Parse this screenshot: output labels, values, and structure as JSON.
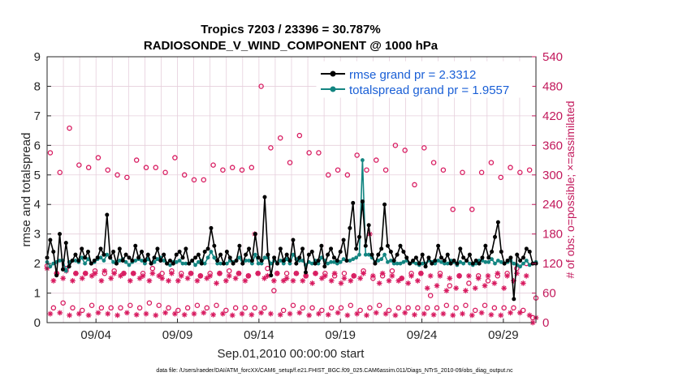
{
  "chart_data": {
    "type": "line",
    "title": "Tropics 7203 / 23396 = 30.787%",
    "subtitle": "RADIOSONDE_V_WIND_COMPONENT @ 1000 hPa",
    "xlabel": "Sep.01,2010 00:00:00 start",
    "ylabel": "rmse and totalspread",
    "ylabel_right": "# of obs: o=possible; ×=assimilated",
    "footer": "data file: /Users/raeder/DAI/ATM_forcXX/CAM6_setup/f.e21.FHIST_BGC.f09_025.CAM6assim.011/Diags_NTrS_2010-09/obs_diag_output.nc",
    "xlim": [
      1,
      31
    ],
    "ylim": [
      0,
      9
    ],
    "ylim_right": [
      0,
      540
    ],
    "grid": true,
    "legend_position": "top-right",
    "x_tick_values": [
      4,
      9,
      14,
      19,
      24,
      29
    ],
    "x_tick_labels": [
      "09/04",
      "09/09",
      "09/14",
      "09/19",
      "09/24",
      "09/29"
    ],
    "y_ticks": [
      "0",
      "1",
      "2",
      "3",
      "4",
      "5",
      "6",
      "7",
      "8",
      "9"
    ],
    "y_ticks_right": [
      "0",
      "60",
      "120",
      "180",
      "240",
      "300",
      "360",
      "420",
      "480",
      "540"
    ],
    "colors": {
      "rmse": "#000000",
      "spread": "#138581",
      "obs": "#d81b60",
      "legend_text": "#1a5fd6",
      "grid": "#e6cfdc"
    },
    "series": [
      {
        "name": "rmse grand pr = 2.3312",
        "key": "rmse",
        "values": [
          2.2,
          2.8,
          2.4,
          1.6,
          3.0,
          1.8,
          2.7,
          1.9,
          2.1,
          2.3,
          2.1,
          2.5,
          2.2,
          2.4,
          2.0,
          2.1,
          2.2,
          2.5,
          2.3,
          3.65,
          2.2,
          2.4,
          2.0,
          2.5,
          2.1,
          2.3,
          2.2,
          2.1,
          2.6,
          2.2,
          2.4,
          2.1,
          2.3,
          2.0,
          2.2,
          2.5,
          2.1,
          2.3,
          2.0,
          2.1,
          2.0,
          2.3,
          2.4,
          2.2,
          2.5,
          2.0,
          2.1,
          2.2,
          2.3,
          2.0,
          2.4,
          2.5,
          3.2,
          2.6,
          2.1,
          2.3,
          2.0,
          2.4,
          2.2,
          2.0,
          2.1,
          2.6,
          2.0,
          2.3,
          2.5,
          2.1,
          3.0,
          2.2,
          2.1,
          4.25,
          2.3,
          1.6,
          2.2,
          2.0,
          2.5,
          2.1,
          2.3,
          2.1,
          2.8,
          2.0,
          2.2,
          2.5,
          1.7,
          2.3,
          2.4,
          2.0,
          2.1,
          2.6,
          1.9,
          2.3,
          2.5,
          2.2,
          2.1,
          2.4,
          2.8,
          2.1,
          3.2,
          4.05,
          2.5,
          2.9,
          4.1,
          2.6,
          3.3,
          2.3,
          2.0,
          2.3,
          2.5,
          4.0,
          2.6,
          2.4,
          2.1,
          2.3,
          2.6,
          2.4,
          2.2,
          2.0,
          2.1,
          2.2,
          2.0,
          2.3,
          1.9,
          2.2,
          2.0,
          2.1,
          2.6,
          2.2,
          2.1,
          2.3,
          2.0,
          2.1,
          2.0,
          2.5,
          2.2,
          2.1,
          2.3,
          2.0,
          2.1,
          2.0,
          2.2,
          2.6,
          2.2,
          2.4,
          2.9,
          3.4,
          2.4,
          2.0,
          2.1,
          2.2,
          0.8,
          2.3,
          2.1,
          2.2,
          2.5,
          2.4,
          2.0,
          2.0
        ]
      },
      {
        "name": "totalspread grand pr = 1.9557",
        "key": "spread",
        "values": [
          2.05,
          1.9,
          2.0,
          2.05,
          2.1,
          2.1,
          1.75,
          2.05,
          2.1,
          2.1,
          2.05,
          2.2,
          2.0,
          2.15,
          2.0,
          2.05,
          2.15,
          2.2,
          2.1,
          2.3,
          2.2,
          2.05,
          2.0,
          2.1,
          2.15,
          2.05,
          1.95,
          2.05,
          2.1,
          2.15,
          2.1,
          2.0,
          2.15,
          2.0,
          2.05,
          2.15,
          2.2,
          2.1,
          2.0,
          1.95,
          2.05,
          2.05,
          2.1,
          2.0,
          2.0,
          2.0,
          2.1,
          1.95,
          2.05,
          2.1,
          2.0,
          2.2,
          2.4,
          2.2,
          2.0,
          2.0,
          2.0,
          2.0,
          2.1,
          2.05,
          2.1,
          2.2,
          2.0,
          2.1,
          2.1,
          2.0,
          2.3,
          2.0,
          2.0,
          2.2,
          2.2,
          2.0,
          2.1,
          2.0,
          2.1,
          2.0,
          2.15,
          2.0,
          2.3,
          2.15,
          2.1,
          2.1,
          1.95,
          2.05,
          2.0,
          2.1,
          2.0,
          2.2,
          2.1,
          2.0,
          2.05,
          2.05,
          2.0,
          2.05,
          2.15,
          2.1,
          2.1,
          2.15,
          2.2,
          2.3,
          5.5,
          2.3,
          2.3,
          2.2,
          2.05,
          2.1,
          2.15,
          2.3,
          2.05,
          2.1,
          2.0,
          2.0,
          2.0,
          2.05,
          2.1,
          2.0,
          2.05,
          2.0,
          1.95,
          2.0,
          2.0,
          2.1,
          2.05,
          2.0,
          2.1,
          2.05,
          2.0,
          2.0,
          2.1,
          2.05,
          1.95,
          2.05,
          2.0,
          2.1,
          2.0,
          1.95,
          2.0,
          2.1,
          2.1,
          2.05,
          2.05,
          2.15,
          2.0,
          2.1,
          2.05,
          2.0,
          2.05,
          2.1,
          2.0,
          1.95,
          1.9,
          2.0,
          2.1,
          1.95,
          2.0,
          2.05
        ]
      },
      {
        "name": "obs possible",
        "key": "possible",
        "values": [
          115,
          345,
          30,
          100,
          305,
          40,
          110,
          395,
          30,
          100,
          320,
          25,
          100,
          315,
          35,
          105,
          335,
          30,
          100,
          310,
          30,
          105,
          300,
          30,
          100,
          295,
          35,
          100,
          330,
          30,
          100,
          315,
          40,
          110,
          315,
          35,
          100,
          305,
          30,
          105,
          335,
          25,
          100,
          300,
          30,
          100,
          290,
          35,
          95,
          290,
          30,
          100,
          320,
          35,
          100,
          310,
          25,
          105,
          315,
          30,
          100,
          310,
          30,
          95,
          315,
          30,
          100,
          480,
          30,
          110,
          355,
          65,
          100,
          375,
          25,
          100,
          325,
          35,
          100,
          380,
          30,
          95,
          345,
          30,
          100,
          345,
          25,
          100,
          300,
          30,
          95,
          310,
          30,
          100,
          300,
          35,
          95,
          340,
          25,
          105,
          310,
          30,
          90,
          330,
          35,
          95,
          310,
          25,
          105,
          360,
          30,
          90,
          350,
          30,
          100,
          280,
          30,
          100,
          355,
          30,
          55,
          325,
          30,
          100,
          310,
          35,
          75,
          230,
          30,
          95,
          305,
          35,
          80,
          230,
          25,
          95,
          305,
          35,
          85,
          325,
          30,
          95,
          295,
          30,
          100,
          315,
          30,
          110,
          305,
          25,
          120,
          310,
          10,
          50
        ]
      },
      {
        "name": "obs assimilated",
        "key": "assimilated",
        "values": [
          110,
          18,
          85,
          100,
          20,
          90,
          105,
          15,
          85,
          100,
          18,
          90,
          100,
          15,
          95,
          100,
          20,
          85,
          105,
          18,
          90,
          100,
          15,
          95,
          100,
          20,
          85,
          100,
          16,
          90,
          95,
          18,
          85,
          100,
          15,
          95,
          90,
          20,
          85,
          100,
          18,
          85,
          95,
          16,
          90,
          100,
          18,
          85,
          95,
          20,
          90,
          95,
          16,
          80,
          100,
          18,
          85,
          95,
          15,
          90,
          100,
          18,
          85,
          95,
          16,
          180,
          100,
          20,
          90,
          95,
          18,
          85,
          100,
          16,
          85,
          90,
          18,
          85,
          100,
          20,
          85,
          95,
          15,
          80,
          100,
          18,
          90,
          95,
          16,
          85,
          100,
          20,
          80,
          90,
          15,
          85,
          95,
          18,
          90,
          100,
          15,
          180,
          95,
          20,
          80,
          100,
          18,
          85,
          95,
          15,
          85,
          90,
          20,
          80,
          95,
          16,
          85,
          100,
          18,
          70,
          95,
          16,
          75,
          95,
          18,
          65,
          90,
          15,
          70,
          95,
          18,
          65,
          95,
          15,
          70,
          90,
          20,
          75,
          95,
          16,
          80,
          100,
          15,
          70,
          95,
          20,
          85,
          100,
          20,
          80,
          95,
          15,
          0,
          10
        ]
      }
    ]
  }
}
